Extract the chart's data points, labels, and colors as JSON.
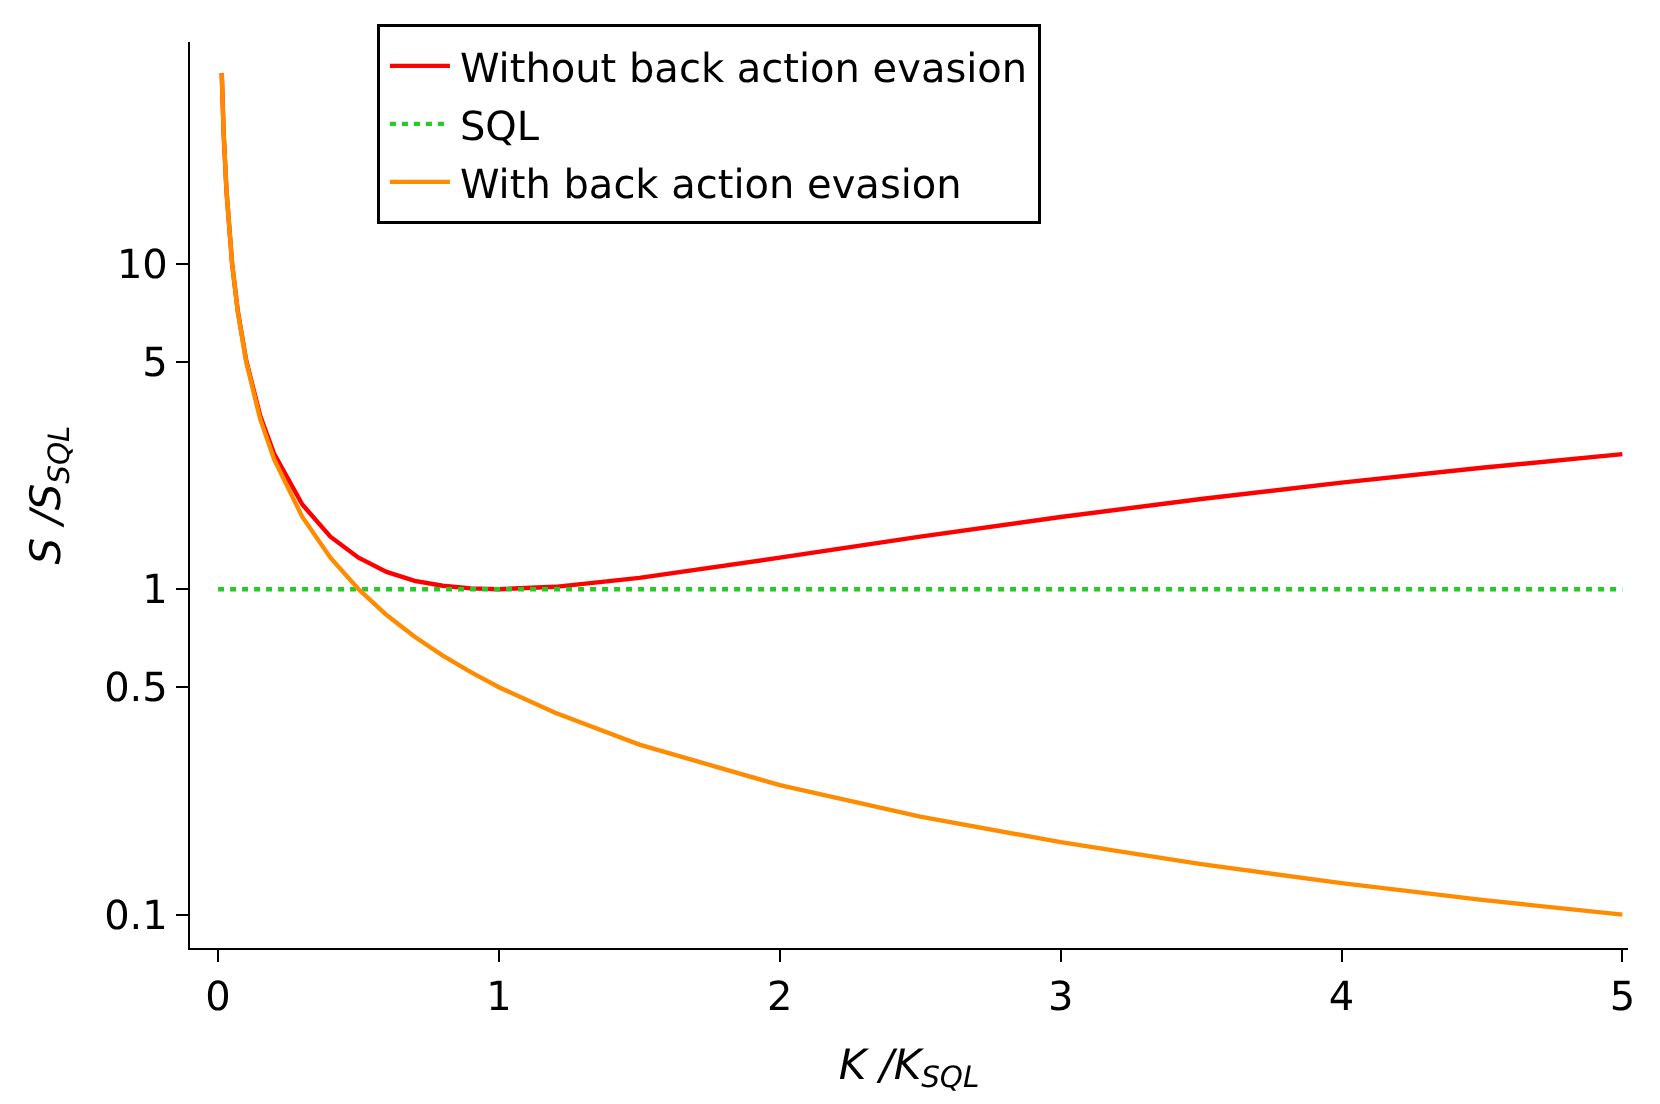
{
  "chart_data": {
    "type": "line",
    "xlabel": "K /K$_{SQL}$",
    "ylabel": "S /S$_{SQL}$",
    "x": [
      0.013,
      0.02,
      0.03,
      0.05,
      0.07,
      0.1,
      0.15,
      0.2,
      0.3,
      0.4,
      0.5,
      0.6,
      0.7,
      0.8,
      0.9,
      1,
      1.2,
      1.5,
      2,
      2.5,
      3,
      3.5,
      4,
      4.5,
      5
    ],
    "series": [
      {
        "name": "Without back action evasion",
        "color": "#ff0000",
        "line_style": "solid",
        "values": [
          38.5,
          25.0,
          16.7,
          10.0,
          7.18,
          5.05,
          3.41,
          2.6,
          1.82,
          1.45,
          1.25,
          1.13,
          1.06,
          1.025,
          1.006,
          1.0,
          1.017,
          1.083,
          1.25,
          1.45,
          1.667,
          1.893,
          2.125,
          2.361,
          2.6
        ]
      },
      {
        "name": "SQL",
        "color": "#22cc22",
        "line_style": "dotted",
        "x": [
          0,
          5
        ],
        "values": [
          1,
          1
        ]
      },
      {
        "name": "With back action evasion",
        "color": "#ff8c00",
        "line_style": "solid",
        "values": [
          38.5,
          25.0,
          16.7,
          10.0,
          7.14,
          5.0,
          3.33,
          2.5,
          1.667,
          1.25,
          1.0,
          0.833,
          0.714,
          0.625,
          0.556,
          0.5,
          0.417,
          0.333,
          0.25,
          0.2,
          0.167,
          0.143,
          0.125,
          0.111,
          0.1
        ]
      }
    ],
    "log": "y",
    "xlim": [
      -0.1,
      5.02
    ],
    "ylim": [
      0.079,
      48
    ],
    "xticks": [
      0,
      1,
      2,
      3,
      4,
      5
    ],
    "yticks": [
      0.1,
      0.5,
      1,
      5,
      10
    ],
    "legend": "top",
    "marker": "none"
  }
}
